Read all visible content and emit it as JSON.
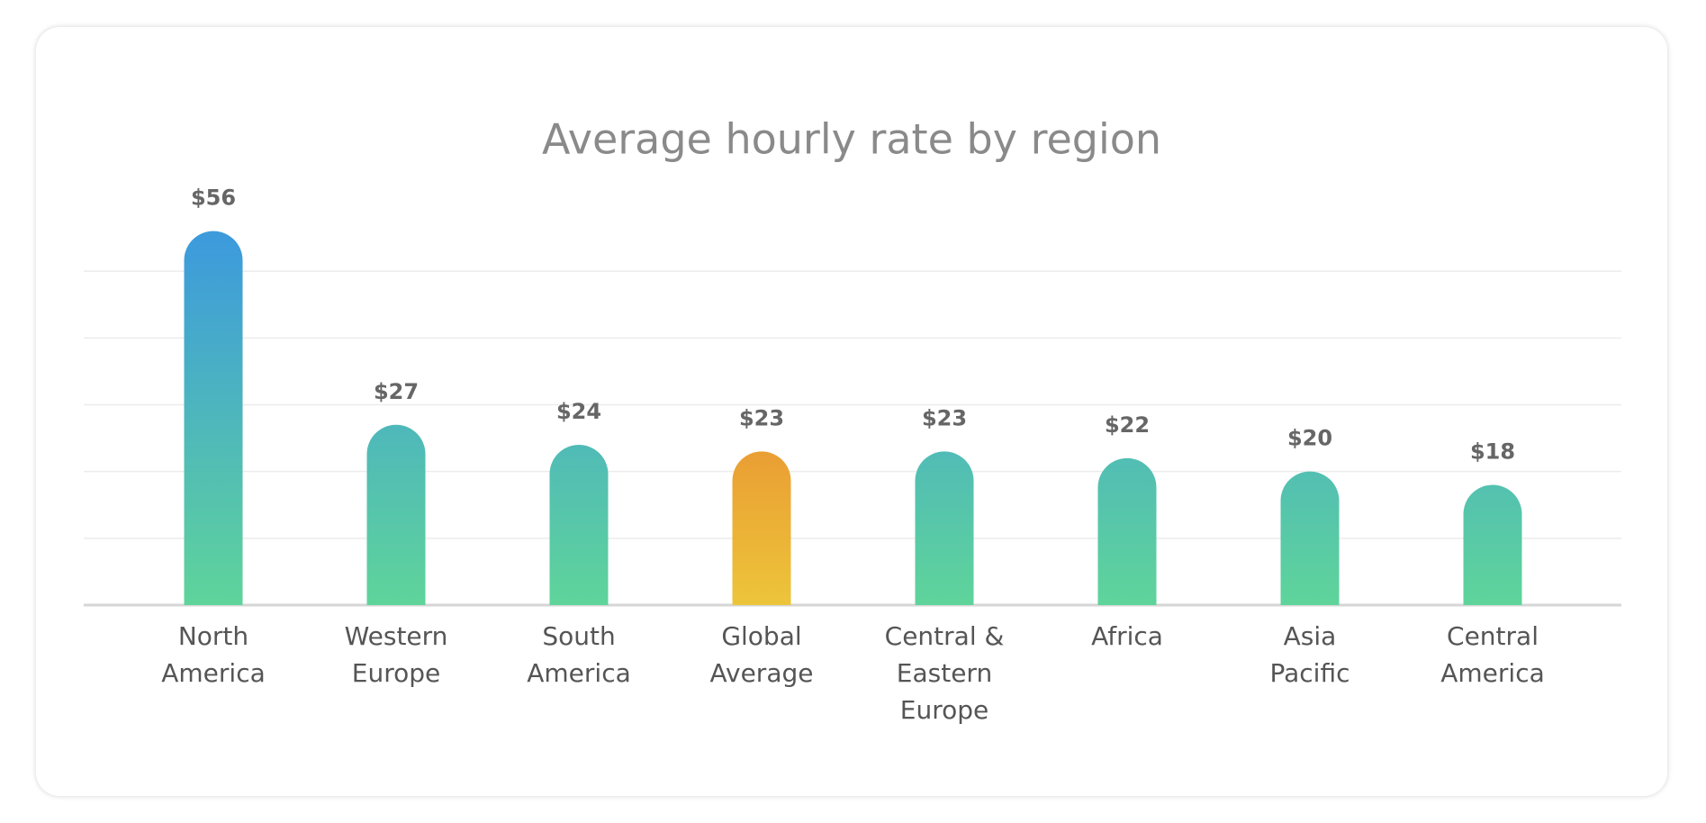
{
  "chart_data": {
    "type": "bar",
    "title": "Average hourly rate by region",
    "categories": [
      "North America",
      "Western Europe",
      "South America",
      "Global Average",
      "Central & Eastern Europe",
      "Africa",
      "Asia Pacific",
      "Central America"
    ],
    "values": [
      56,
      27,
      24,
      23,
      23,
      22,
      20,
      18
    ],
    "value_labels": [
      "$56",
      "$27",
      "$24",
      "$23",
      "$23",
      "$22",
      "$20",
      "$18"
    ],
    "top_colors": [
      "#3d9bdc",
      "#3d9bdc",
      "#3d9bdc",
      "#e8692a",
      "#3d9bdc",
      "#3d9bdc",
      "#3d9bdc",
      "#3d9bdc"
    ],
    "bottom_colors": [
      "#5fd49a",
      "#5fd49a",
      "#5fd49a",
      "#ecc53a",
      "#5fd49a",
      "#5fd49a",
      "#5fd49a",
      "#5fd49a"
    ],
    "ylim": [
      0,
      60
    ],
    "yticks": [
      0,
      10,
      20,
      30,
      40,
      50
    ],
    "grid": true
  }
}
